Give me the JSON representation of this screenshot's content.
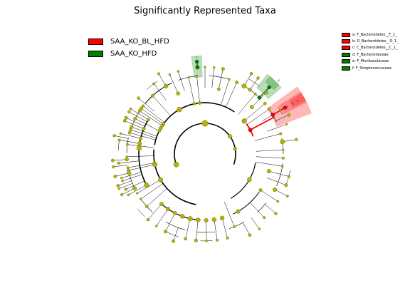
{
  "title": "Significantly Represented Taxa",
  "colors": {
    "red": "#ff0000",
    "green": "#008000",
    "node": "#b5b500",
    "node_edge": "#555500"
  },
  "legend_main": [
    {
      "label": "SAA_KO_BL_HFD",
      "color": "#ff0000"
    },
    {
      "label": "SAA_KO_HFD",
      "color": "#008000"
    }
  ],
  "legend_right": [
    {
      "label": "a: F_Bacteroidetes__F_1_",
      "color": "#ff0000"
    },
    {
      "label": "b: O_Bacteroidetes__O_1_",
      "color": "#ff0000"
    },
    {
      "label": "c: C_Bacteroidetes__C_1_",
      "color": "#ff0000"
    },
    {
      "label": "d: F_Bacteroidaceae",
      "color": "#008000"
    },
    {
      "label": "e: F_Muribaculaceae",
      "color": "#008000"
    },
    {
      "label": "f: F_Streptococcaceae",
      "color": "#008000"
    }
  ],
  "clade_labels": [
    {
      "letter": "a",
      "class": "red"
    },
    {
      "letter": "b",
      "class": "red"
    },
    {
      "letter": "c",
      "class": "red"
    },
    {
      "letter": "d",
      "class": "green"
    },
    {
      "letter": "e",
      "class": "green"
    },
    {
      "letter": "f",
      "class": "green"
    }
  ]
}
